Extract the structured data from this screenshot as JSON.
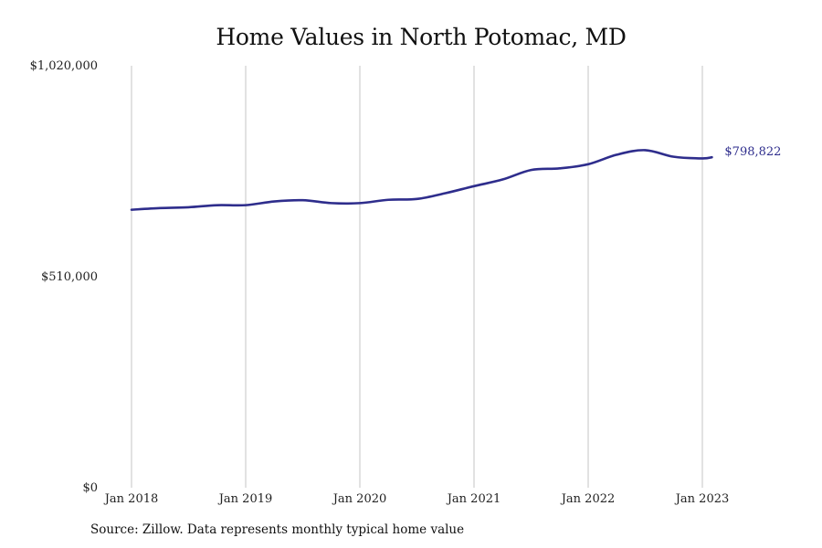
{
  "chart_data": {
    "type": "line",
    "title": "Home Values in North Potomac, MD",
    "xlabel": "",
    "ylabel": "",
    "ylim": [
      0,
      1020000
    ],
    "y_ticks": [
      {
        "value": 0,
        "label": "$0"
      },
      {
        "value": 510000,
        "label": "$510,000"
      },
      {
        "value": 1020000,
        "label": "$1,020,000"
      }
    ],
    "x_ticks": [
      {
        "value": "2018-01",
        "label": "Jan 2018"
      },
      {
        "value": "2019-01",
        "label": "Jan 2019"
      },
      {
        "value": "2020-01",
        "label": "Jan 2020"
      },
      {
        "value": "2021-01",
        "label": "Jan 2021"
      },
      {
        "value": "2022-01",
        "label": "Jan 2022"
      },
      {
        "value": "2023-01",
        "label": "Jan 2023"
      }
    ],
    "grid": "vertical",
    "series": [
      {
        "color": "#2e2d8c",
        "end_label": "$798,822",
        "points": [
          {
            "x": "2018-01",
            "y": 672000
          },
          {
            "x": "2018-04",
            "y": 676000
          },
          {
            "x": "2018-07",
            "y": 678000
          },
          {
            "x": "2018-10",
            "y": 683000
          },
          {
            "x": "2019-01",
            "y": 683000
          },
          {
            "x": "2019-04",
            "y": 692000
          },
          {
            "x": "2019-07",
            "y": 695000
          },
          {
            "x": "2019-10",
            "y": 688000
          },
          {
            "x": "2020-01",
            "y": 688000
          },
          {
            "x": "2020-04",
            "y": 696000
          },
          {
            "x": "2020-07",
            "y": 698000
          },
          {
            "x": "2020-10",
            "y": 712000
          },
          {
            "x": "2021-01",
            "y": 729000
          },
          {
            "x": "2021-04",
            "y": 745000
          },
          {
            "x": "2021-07",
            "y": 768000
          },
          {
            "x": "2021-10",
            "y": 772000
          },
          {
            "x": "2022-01",
            "y": 782000
          },
          {
            "x": "2022-04",
            "y": 805000
          },
          {
            "x": "2022-07",
            "y": 816000
          },
          {
            "x": "2022-10",
            "y": 800000
          },
          {
            "x": "2023-01",
            "y": 796000
          },
          {
            "x": "2023-02",
            "y": 798822
          }
        ]
      }
    ]
  },
  "source_note": "Source: Zillow. Data represents monthly typical home value",
  "colors": {
    "line": "#2e2d8c",
    "grid": "#c6c6c6",
    "end_label": "#2e2d8c"
  }
}
